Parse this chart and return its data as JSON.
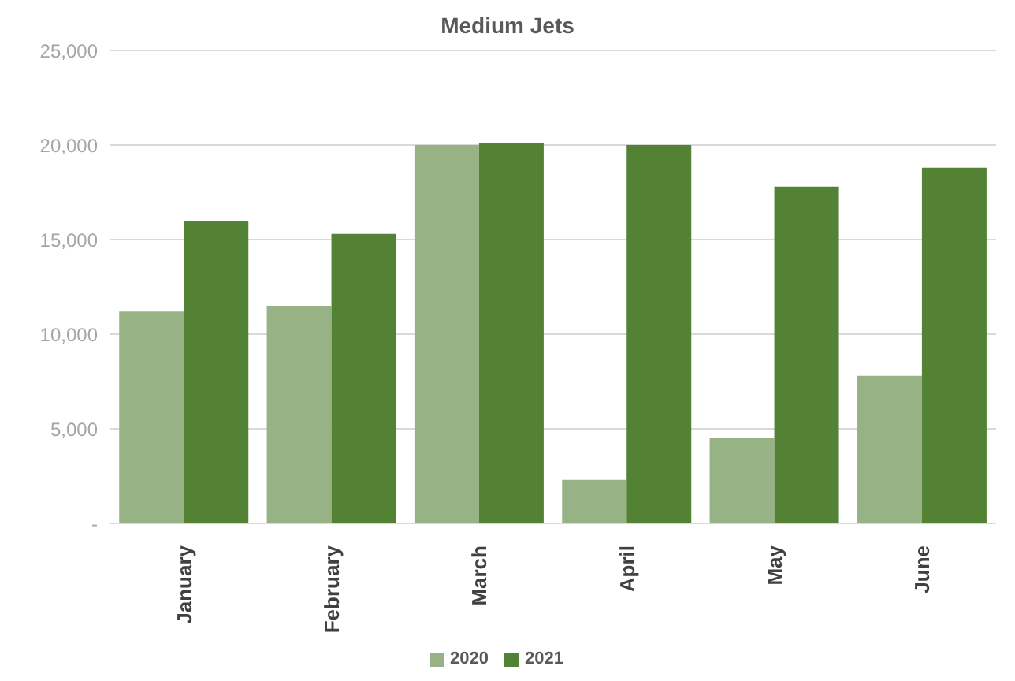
{
  "chart_data": {
    "type": "bar",
    "title": "Medium Jets",
    "categories": [
      "January",
      "February",
      "March",
      "April",
      "May",
      "June"
    ],
    "series": [
      {
        "name": "2020",
        "color": "#97b386",
        "values": [
          11200,
          11500,
          20000,
          2300,
          4500,
          7800
        ]
      },
      {
        "name": "2021",
        "color": "#548235",
        "values": [
          16000,
          15300,
          20100,
          20000,
          17800,
          18800
        ]
      }
    ],
    "ylim": [
      0,
      25000
    ],
    "yticks": [
      {
        "value": 0,
        "label": "-"
      },
      {
        "value": 5000,
        "label": "5,000"
      },
      {
        "value": 10000,
        "label": "10,000"
      },
      {
        "value": 15000,
        "label": "15,000"
      },
      {
        "value": 20000,
        "label": "20,000"
      },
      {
        "value": 25000,
        "label": "25,000"
      }
    ],
    "grid": "y",
    "legend": "bottom"
  }
}
